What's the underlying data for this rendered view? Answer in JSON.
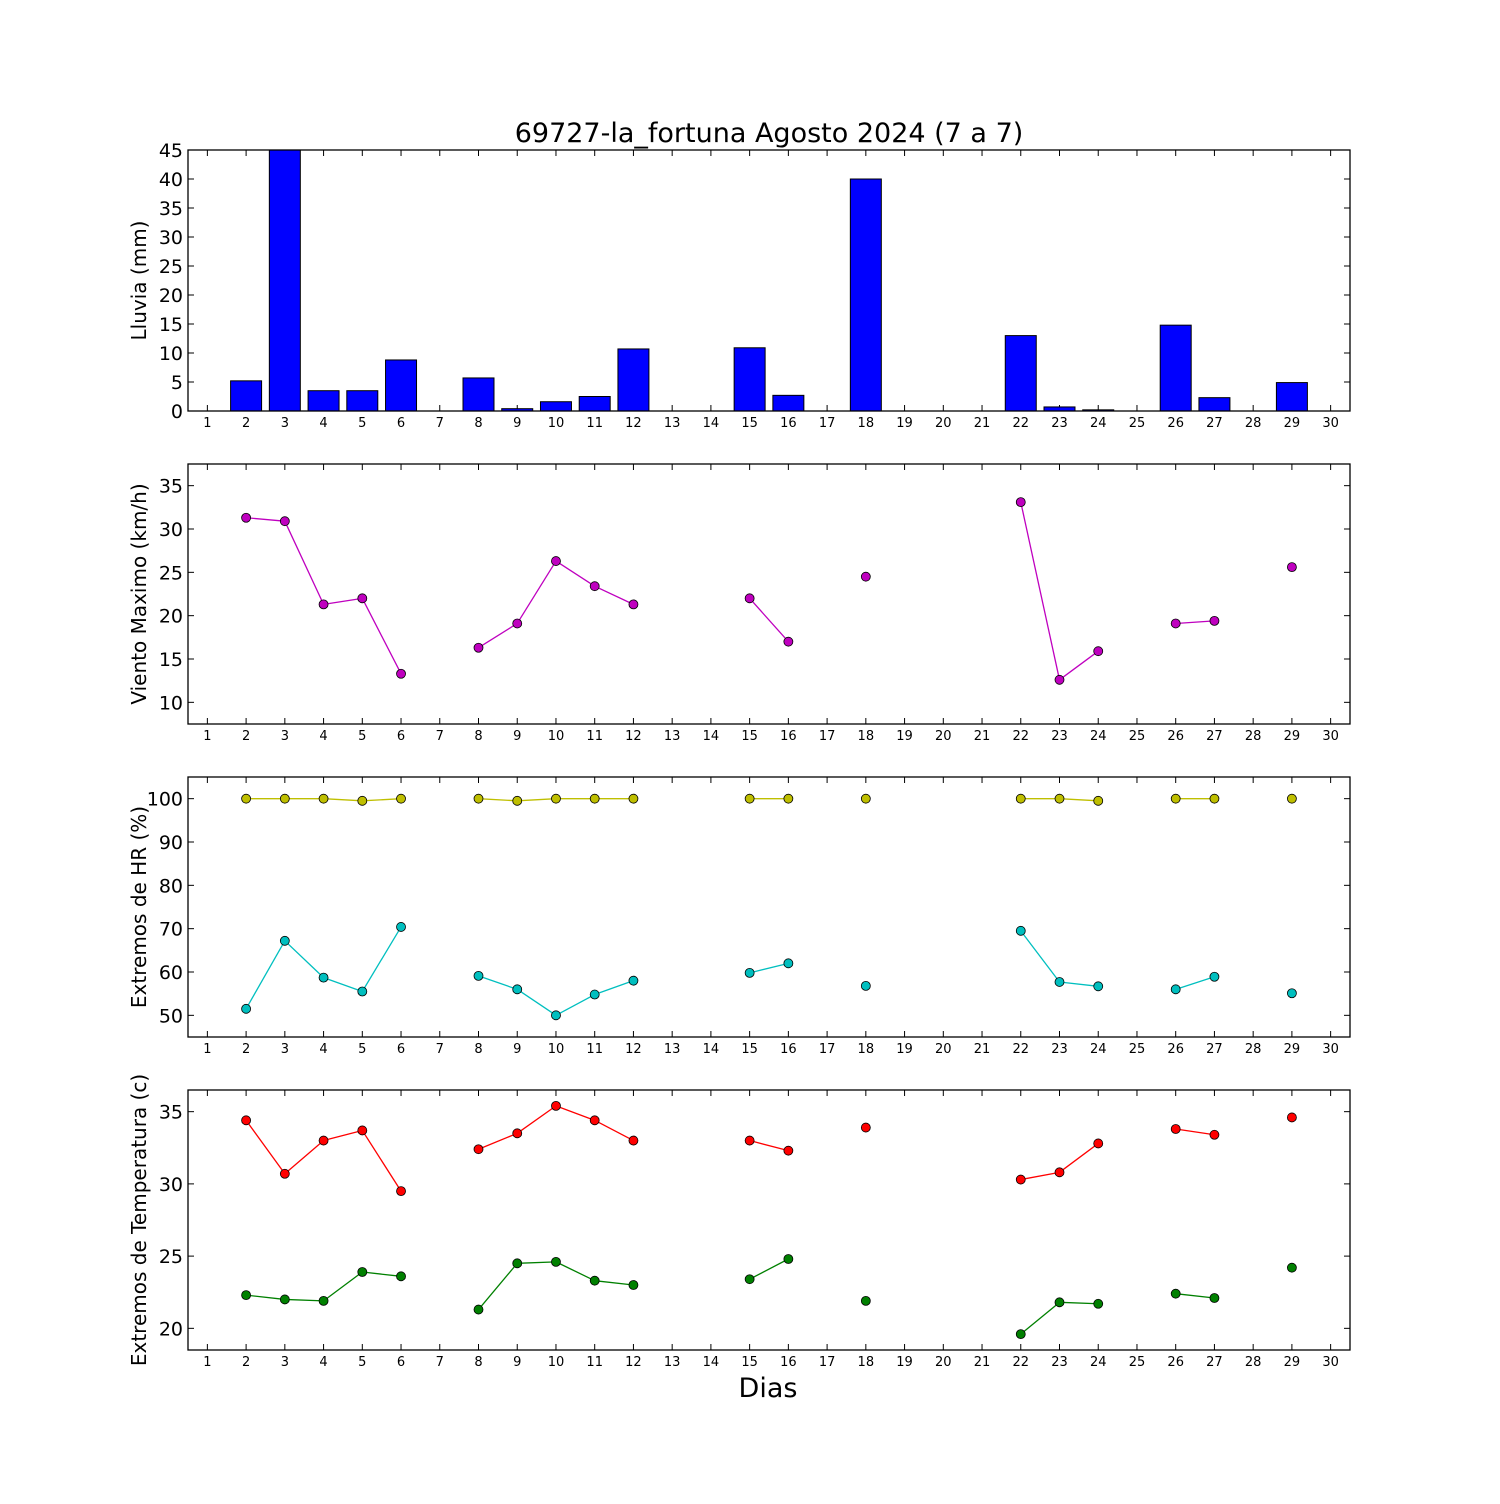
{
  "title": "69727-la_fortuna Agosto 2024  (7 a 7)",
  "xlabel": "Dias",
  "x_ticks": [
    1,
    2,
    3,
    4,
    5,
    6,
    7,
    8,
    9,
    10,
    11,
    12,
    13,
    14,
    15,
    16,
    17,
    18,
    19,
    20,
    21,
    22,
    23,
    24,
    25,
    26,
    27,
    28,
    29,
    30
  ],
  "chart_data": [
    {
      "type": "bar",
      "ylabel": "Lluvia (mm)",
      "ylim": [
        0,
        45
      ],
      "yticks": [
        0,
        5,
        10,
        15,
        20,
        25,
        30,
        35,
        40,
        45
      ],
      "color": "#0000ff",
      "x": [
        2,
        3,
        4,
        5,
        6,
        8,
        9,
        10,
        11,
        12,
        15,
        16,
        18,
        22,
        23,
        24,
        26,
        27,
        29
      ],
      "values": [
        5.2,
        45.0,
        3.5,
        3.5,
        8.8,
        5.7,
        0.4,
        1.6,
        2.5,
        10.7,
        10.9,
        2.7,
        40.0,
        13.0,
        0.7,
        0.2,
        14.8,
        2.3,
        4.9
      ]
    },
    {
      "type": "line",
      "ylabel": "Viento Maximo (km/h)",
      "ylim": [
        7.5,
        37.5
      ],
      "yticks": [
        10,
        15,
        20,
        25,
        30,
        35
      ],
      "series": [
        {
          "color": "#bf00bf",
          "x": [
            2,
            3,
            4,
            5,
            6,
            8,
            9,
            10,
            11,
            12,
            15,
            16,
            18,
            22,
            23,
            24,
            26,
            27,
            29
          ],
          "values": [
            31.3,
            30.9,
            21.3,
            22.0,
            13.3,
            16.3,
            19.1,
            26.3,
            23.4,
            21.3,
            22.0,
            17.0,
            24.5,
            33.1,
            12.6,
            15.9,
            19.1,
            19.4,
            25.6
          ]
        }
      ]
    },
    {
      "type": "line",
      "ylabel": "Extremos de HR (%)",
      "ylim": [
        45,
        105
      ],
      "yticks": [
        50,
        60,
        70,
        80,
        90,
        100
      ],
      "series": [
        {
          "color": "#bfbf00",
          "x": [
            2,
            3,
            4,
            5,
            6,
            8,
            9,
            10,
            11,
            12,
            15,
            16,
            18,
            22,
            23,
            24,
            26,
            27,
            29
          ],
          "values": [
            100,
            100,
            100,
            99.5,
            100,
            100,
            99.5,
            100,
            100,
            100,
            100,
            100,
            100,
            100,
            100,
            99.5,
            100,
            100,
            100
          ]
        },
        {
          "color": "#00bfbf",
          "x": [
            2,
            3,
            4,
            5,
            6,
            8,
            9,
            10,
            11,
            12,
            15,
            16,
            18,
            22,
            23,
            24,
            26,
            27,
            29
          ],
          "values": [
            51.5,
            67.2,
            58.7,
            55.5,
            70.4,
            59.1,
            56.0,
            50.0,
            54.8,
            58.0,
            59.8,
            62.0,
            56.8,
            69.5,
            57.7,
            56.7,
            56.0,
            58.9,
            55.1
          ]
        }
      ]
    },
    {
      "type": "line",
      "ylabel": "Extremos de Temperatura (c)",
      "ylim": [
        18.5,
        36.5
      ],
      "yticks": [
        20,
        25,
        30,
        35
      ],
      "series": [
        {
          "color": "#ff0000",
          "x": [
            2,
            3,
            4,
            5,
            6,
            8,
            9,
            10,
            11,
            12,
            15,
            16,
            18,
            22,
            23,
            24,
            26,
            27,
            29
          ],
          "values": [
            34.4,
            30.7,
            33.0,
            33.7,
            29.5,
            32.4,
            33.5,
            35.4,
            34.4,
            33.0,
            33.0,
            32.3,
            33.9,
            30.3,
            30.8,
            32.8,
            33.8,
            33.4,
            34.6
          ]
        },
        {
          "color": "#008000",
          "x": [
            2,
            3,
            4,
            5,
            6,
            8,
            9,
            10,
            11,
            12,
            15,
            16,
            18,
            22,
            23,
            24,
            26,
            27,
            29
          ],
          "values": [
            22.3,
            22.0,
            21.9,
            23.9,
            23.6,
            21.3,
            24.5,
            24.6,
            23.3,
            23.0,
            23.4,
            24.8,
            21.9,
            19.6,
            21.8,
            21.7,
            22.4,
            22.1,
            24.2
          ]
        }
      ]
    }
  ]
}
